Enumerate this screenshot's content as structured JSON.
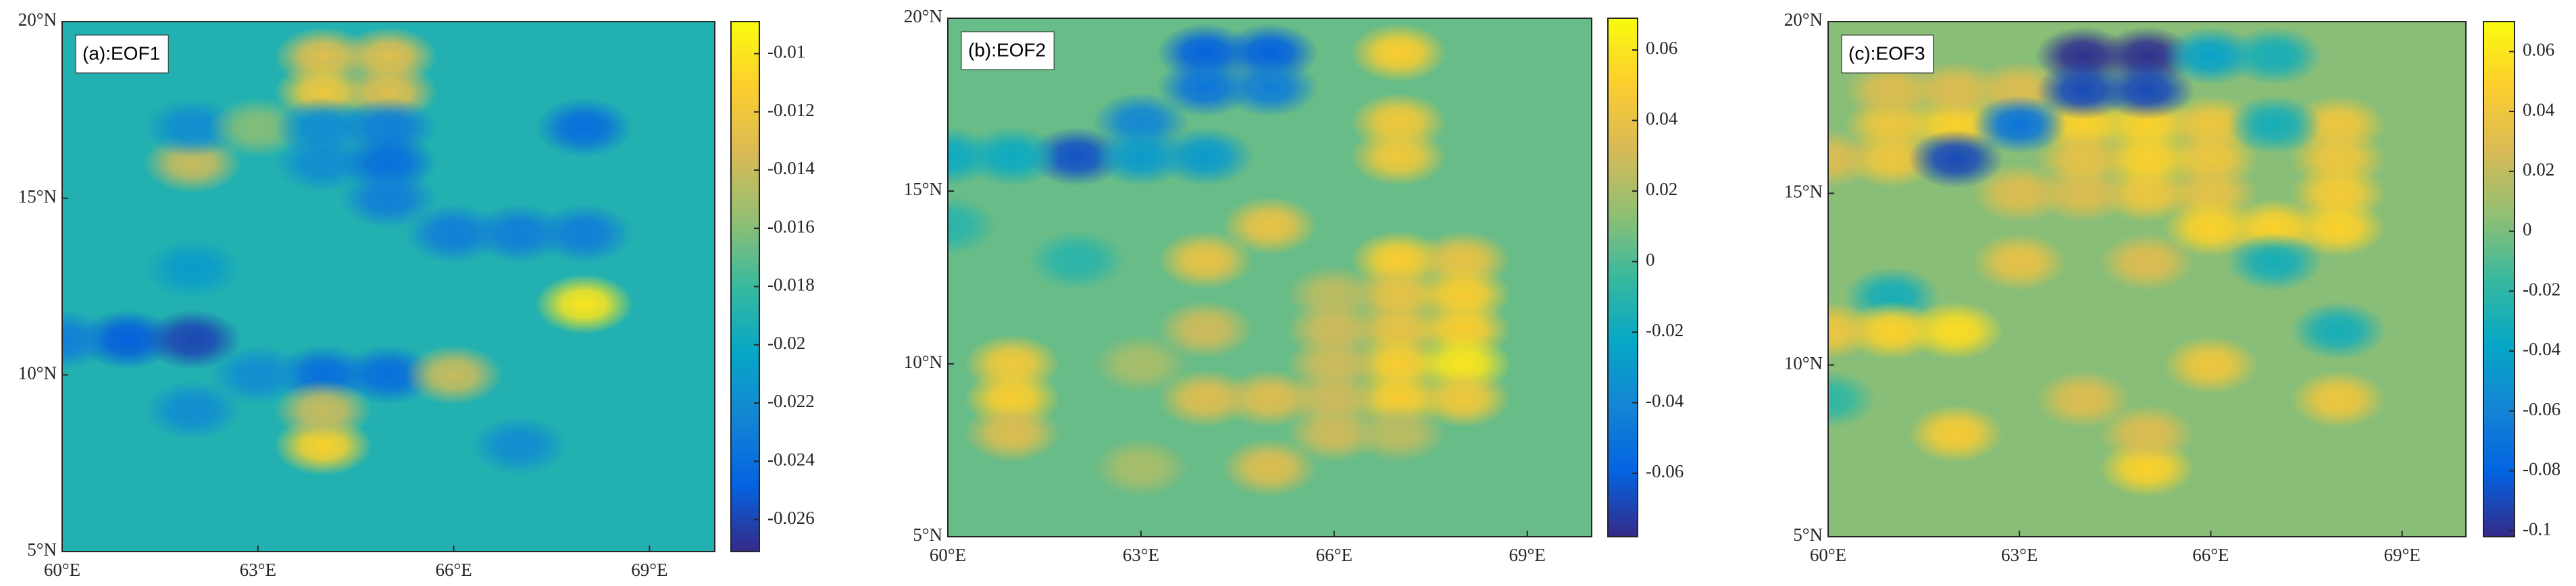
{
  "chart_data": [
    {
      "type": "heatmap",
      "title": "(a):EOF1",
      "colormap": "parula",
      "xlim": [
        60,
        70
      ],
      "ylim": [
        5,
        20
      ],
      "xticks": [
        {
          "value": 60,
          "label": "60°E"
        },
        {
          "value": 63,
          "label": "63°E"
        },
        {
          "value": 66,
          "label": "66°E"
        },
        {
          "value": 69,
          "label": "69°E"
        }
      ],
      "yticks": [
        {
          "value": 5,
          "label": "5°N"
        },
        {
          "value": 10,
          "label": "10°N"
        },
        {
          "value": 15,
          "label": "15°N"
        },
        {
          "value": 20,
          "label": "20°N"
        }
      ],
      "clim": [
        -0.0271,
        -0.0089
      ],
      "cticks": [
        -0.026,
        -0.024,
        -0.022,
        -0.02,
        -0.018,
        -0.016,
        -0.014,
        -0.012,
        -0.01
      ],
      "fill_value": -0.019,
      "x": [
        62,
        62,
        63,
        64,
        64,
        65,
        65,
        64,
        64,
        65,
        65,
        65,
        68,
        66,
        67,
        68,
        62,
        61,
        62,
        60,
        62,
        64,
        65,
        63,
        64,
        64,
        66,
        67,
        68
      ],
      "y": [
        16,
        17,
        17,
        19,
        18,
        19,
        18,
        17,
        16,
        17,
        16,
        15,
        17,
        14,
        14,
        14,
        13,
        11,
        11,
        11,
        9,
        10,
        10,
        10,
        8,
        9,
        10,
        8,
        12
      ],
      "values": [
        -0.014,
        -0.022,
        -0.016,
        -0.013,
        -0.012,
        -0.013,
        -0.013,
        -0.022,
        -0.022,
        -0.023,
        -0.024,
        -0.023,
        -0.024,
        -0.023,
        -0.023,
        -0.023,
        -0.021,
        -0.025,
        -0.026,
        -0.023,
        -0.022,
        -0.024,
        -0.024,
        -0.022,
        -0.011,
        -0.014,
        -0.014,
        -0.022,
        -0.01
      ]
    },
    {
      "type": "heatmap",
      "title": "(b):EOF2",
      "colormap": "parula",
      "xlim": [
        60,
        70
      ],
      "ylim": [
        5,
        20
      ],
      "xticks": [
        {
          "value": 60,
          "label": "60°E"
        },
        {
          "value": 63,
          "label": "63°E"
        },
        {
          "value": 66,
          "label": "66°E"
        },
        {
          "value": 69,
          "label": "69°E"
        }
      ],
      "yticks": [
        {
          "value": 5,
          "label": "5°N"
        },
        {
          "value": 10,
          "label": "10°N"
        },
        {
          "value": 15,
          "label": "15°N"
        },
        {
          "value": 20,
          "label": "20°N"
        }
      ],
      "clim": [
        -0.078,
        0.069
      ],
      "cticks": [
        -0.06,
        -0.04,
        -0.02,
        0,
        0.02,
        0.04,
        0.06
      ],
      "fill_value": 0.005,
      "x": [
        64,
        65,
        64,
        65,
        67,
        62,
        63,
        63,
        64,
        61,
        60,
        67,
        67,
        65,
        64,
        60,
        62,
        67,
        68,
        67,
        68,
        66,
        67,
        68,
        66,
        67,
        68,
        66,
        67,
        68,
        66,
        65,
        64,
        64,
        63,
        61,
        61,
        61,
        66,
        65,
        63,
        67
      ],
      "y": [
        19,
        19,
        18,
        18,
        19,
        16,
        17,
        16,
        16,
        16,
        16,
        17,
        16,
        14,
        13,
        14,
        13,
        13,
        13,
        12,
        12,
        12,
        11,
        11,
        11,
        10,
        10,
        10,
        9,
        9,
        9,
        9,
        9,
        11,
        10,
        10,
        9,
        8,
        8,
        7,
        7,
        8
      ],
      "values": [
        -0.06,
        -0.06,
        -0.05,
        -0.045,
        0.05,
        -0.065,
        -0.04,
        -0.03,
        -0.03,
        -0.02,
        -0.02,
        0.045,
        0.045,
        0.04,
        0.04,
        -0.01,
        -0.01,
        0.05,
        0.04,
        0.04,
        0.05,
        0.025,
        0.04,
        0.05,
        0.03,
        0.05,
        0.06,
        0.03,
        0.05,
        0.045,
        0.03,
        0.035,
        0.035,
        0.03,
        0.02,
        0.045,
        0.05,
        0.035,
        0.03,
        0.035,
        0.02,
        0.025
      ]
    },
    {
      "type": "heatmap",
      "title": "(c):EOF3",
      "colormap": "parula",
      "xlim": [
        60,
        70
      ],
      "ylim": [
        5,
        20
      ],
      "xticks": [
        {
          "value": 60,
          "label": "60°E"
        },
        {
          "value": 63,
          "label": "63°E"
        },
        {
          "value": 66,
          "label": "66°E"
        },
        {
          "value": 69,
          "label": "69°E"
        }
      ],
      "yticks": [
        {
          "value": 5,
          "label": "5°N"
        },
        {
          "value": 10,
          "label": "10°N"
        },
        {
          "value": 15,
          "label": "15°N"
        },
        {
          "value": 20,
          "label": "20°N"
        }
      ],
      "clim": [
        -0.102,
        0.07
      ],
      "cticks": [
        -0.1,
        -0.08,
        -0.06,
        -0.04,
        -0.02,
        0,
        0.02,
        0.04,
        0.06
      ],
      "fill_value": 0.003,
      "x": [
        61,
        62,
        61,
        60,
        61,
        62,
        63,
        64,
        65,
        66,
        66,
        65,
        64,
        63,
        66,
        68,
        68,
        68,
        66,
        67,
        68,
        65,
        64,
        64,
        65,
        64,
        65,
        66,
        67,
        62,
        63,
        67,
        63,
        65,
        67,
        61,
        61,
        62,
        60,
        66,
        68,
        64,
        62,
        65,
        65,
        60,
        68
      ],
      "y": [
        17,
        17,
        16,
        16,
        18,
        18,
        18,
        17,
        17,
        17,
        16,
        15,
        15,
        15,
        15,
        17,
        16,
        15,
        14,
        14,
        14,
        16,
        16,
        19,
        19,
        18,
        18,
        19,
        19,
        16,
        17,
        17,
        13,
        13,
        13,
        12,
        11,
        11,
        11,
        10,
        9,
        9,
        8,
        7,
        8,
        9,
        11
      ],
      "values": [
        0.04,
        0.05,
        0.04,
        0.03,
        0.03,
        0.03,
        0.03,
        0.05,
        0.05,
        0.04,
        0.04,
        0.04,
        0.03,
        0.03,
        0.035,
        0.04,
        0.04,
        0.045,
        0.05,
        0.05,
        0.05,
        0.05,
        0.035,
        -0.1,
        -0.1,
        -0.09,
        -0.09,
        -0.04,
        -0.03,
        -0.09,
        -0.07,
        -0.03,
        0.035,
        0.03,
        -0.03,
        -0.03,
        0.05,
        0.055,
        0.04,
        0.04,
        0.04,
        0.03,
        0.045,
        0.05,
        0.03,
        -0.02,
        -0.03
      ]
    }
  ]
}
